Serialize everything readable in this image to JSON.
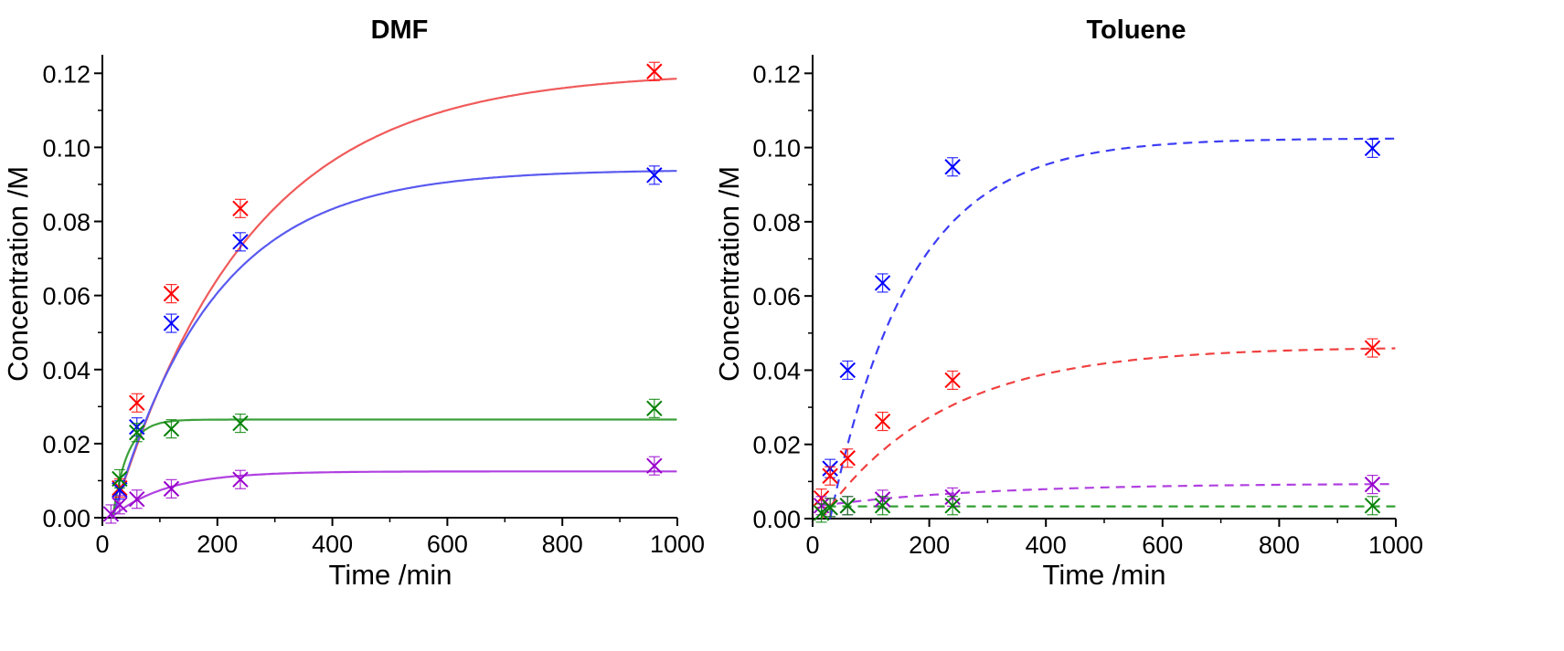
{
  "chart_data": [
    {
      "type": "scatter",
      "title": "DMF",
      "xlabel": "Time /min",
      "ylabel": "Concentration /M",
      "xlim": [
        0,
        1000
      ],
      "ylim": [
        0,
        0.125
      ],
      "xticks": [
        "0",
        "200",
        "400",
        "600",
        "800",
        "1000"
      ],
      "yticks": [
        "0.00",
        "0.02",
        "0.04",
        "0.06",
        "0.08",
        "0.10",
        "0.12"
      ],
      "fit_style": "solid",
      "series": [
        {
          "color": "#ff0000",
          "fit_color": "#f05a5a",
          "marker": "x",
          "points": [
            {
              "x": 30,
              "y": 0.008
            },
            {
              "x": 60,
              "y": 0.031
            },
            {
              "x": 120,
              "y": 0.0605
            },
            {
              "x": 240,
              "y": 0.0835
            },
            {
              "x": 960,
              "y": 0.1205
            }
          ],
          "fit": {
            "plateau": 0.1205,
            "rate": 0.0042,
            "lag": 18
          }
        },
        {
          "color": "#0000ff",
          "fit_color": "#5a5af0",
          "marker": "x",
          "points": [
            {
              "x": 30,
              "y": 0.0075
            },
            {
              "x": 60,
              "y": 0.0245
            },
            {
              "x": 120,
              "y": 0.0525
            },
            {
              "x": 240,
              "y": 0.0745
            },
            {
              "x": 960,
              "y": 0.0925
            }
          ],
          "fit": {
            "plateau": 0.094,
            "rate": 0.0057,
            "lag": 18
          }
        },
        {
          "color": "#008000",
          "fit_color": "#3ca03c",
          "marker": "x",
          "points": [
            {
              "x": 30,
              "y": 0.0105
            },
            {
              "x": 60,
              "y": 0.023
            },
            {
              "x": 120,
              "y": 0.024
            },
            {
              "x": 240,
              "y": 0.0255
            },
            {
              "x": 960,
              "y": 0.0295
            }
          ],
          "fit": {
            "plateau": 0.0265,
            "rate": 0.04,
            "lag": 18
          }
        },
        {
          "color": "#9900cc",
          "fit_color": "#b040e0",
          "marker": "x",
          "points": [
            {
              "x": 15,
              "y": 0.001
            },
            {
              "x": 30,
              "y": 0.0035
            },
            {
              "x": 60,
              "y": 0.005
            },
            {
              "x": 120,
              "y": 0.0078
            },
            {
              "x": 240,
              "y": 0.0103
            },
            {
              "x": 960,
              "y": 0.014
            }
          ],
          "fit": {
            "plateau": 0.0125,
            "rate": 0.0105,
            "lag": 15
          }
        }
      ]
    },
    {
      "type": "scatter",
      "title": "Toluene",
      "xlabel": "Time /min",
      "ylabel": "Concentration /M",
      "xlim": [
        0,
        1000
      ],
      "ylim": [
        0,
        0.125
      ],
      "xticks": [
        "0",
        "200",
        "400",
        "600",
        "800",
        "1000"
      ],
      "yticks": [
        "0.00",
        "0.02",
        "0.04",
        "0.06",
        "0.08",
        "0.10",
        "0.12"
      ],
      "fit_style": "dashed",
      "series": [
        {
          "color": "#0000ff",
          "fit_color": "#3c3cf5",
          "marker": "x",
          "points": [
            {
              "x": 30,
              "y": 0.0135
            },
            {
              "x": 60,
              "y": 0.04
            },
            {
              "x": 120,
              "y": 0.0635
            },
            {
              "x": 240,
              "y": 0.0948
            },
            {
              "x": 960,
              "y": 0.0998
            }
          ],
          "fit": {
            "plateau": 0.1025,
            "rate": 0.0072,
            "lag": 30
          }
        },
        {
          "color": "#ff0000",
          "fit_color": "#f04040",
          "marker": "x",
          "points": [
            {
              "x": 15,
              "y": 0.0055
            },
            {
              "x": 30,
              "y": 0.0115
            },
            {
              "x": 60,
              "y": 0.0163
            },
            {
              "x": 120,
              "y": 0.0262
            },
            {
              "x": 240,
              "y": 0.0373
            },
            {
              "x": 960,
              "y": 0.046
            }
          ],
          "fit": {
            "plateau": 0.0463,
            "rate": 0.0048,
            "lag": 15
          }
        },
        {
          "color": "#9900cc",
          "fit_color": "#b040e0",
          "marker": "x",
          "points": [
            {
              "x": 15,
              "y": 0.0035
            },
            {
              "x": 30,
              "y": 0.003
            },
            {
              "x": 60,
              "y": 0.0035
            },
            {
              "x": 120,
              "y": 0.0052
            },
            {
              "x": 240,
              "y": 0.0058
            },
            {
              "x": 960,
              "y": 0.0092
            }
          ],
          "fit": {
            "plateau": 0.0095,
            "rate": 0.0035,
            "offset": 0.0035,
            "lag": 15
          }
        },
        {
          "color": "#008000",
          "fit_color": "#30a030",
          "marker": "x",
          "points": [
            {
              "x": 15,
              "y": 0.0015
            },
            {
              "x": 30,
              "y": 0.003
            },
            {
              "x": 60,
              "y": 0.0035
            },
            {
              "x": 120,
              "y": 0.0035
            },
            {
              "x": 240,
              "y": 0.0035
            },
            {
              "x": 960,
              "y": 0.0035
            }
          ],
          "fit": {
            "plateau": 0.0033,
            "rate": 1,
            "lag": 15
          }
        }
      ]
    }
  ]
}
